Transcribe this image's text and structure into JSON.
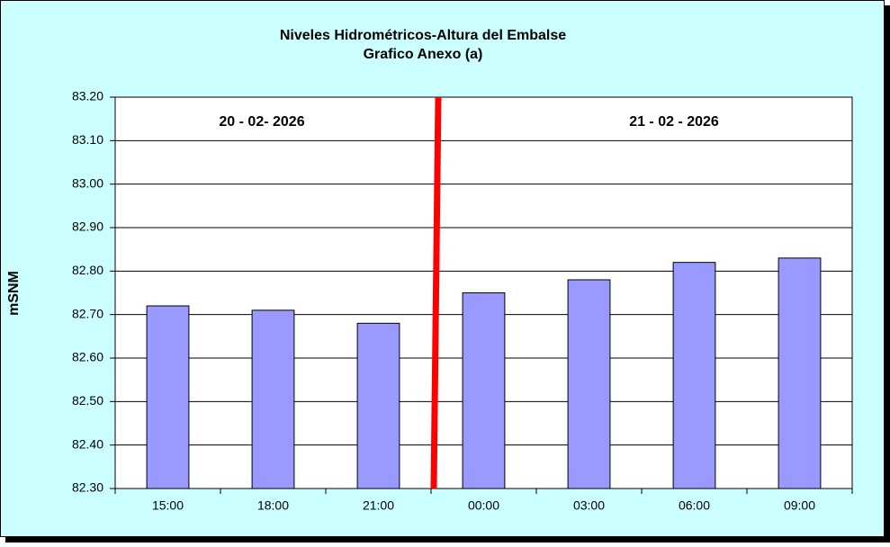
{
  "chart_data": {
    "type": "bar",
    "title": "Niveles Hidrométricos-Altura del Embalse",
    "subtitle": "Grafico Anexo (a)",
    "y_label": "mSNM",
    "annotations": [
      "20 - 02- 2026",
      "21 - 02 - 2026"
    ],
    "categories": [
      "15:00",
      "18:00",
      "21:00",
      "00:00",
      "03:00",
      "06:00",
      "09:00"
    ],
    "values": [
      82.72,
      82.71,
      82.68,
      82.75,
      82.78,
      82.82,
      82.83
    ],
    "color": "#9999ff",
    "ylim": [
      82.3,
      83.2
    ],
    "yticks": [
      {
        "value": 82.3,
        "label": "82.30"
      },
      {
        "value": 82.4,
        "label": "82.40"
      },
      {
        "value": 82.5,
        "label": "82.50"
      },
      {
        "value": 82.6,
        "label": "82.60"
      },
      {
        "value": 82.7,
        "label": "82.70"
      },
      {
        "value": 82.8,
        "label": "82.80"
      },
      {
        "value": 82.9,
        "label": "82.90"
      },
      {
        "value": 83.0,
        "label": "83.00"
      },
      {
        "value": 83.1,
        "label": "83.10"
      },
      {
        "value": 83.2,
        "label": "83.20"
      }
    ],
    "grid": true
  }
}
